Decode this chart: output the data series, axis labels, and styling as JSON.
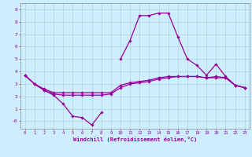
{
  "series": {
    "curve1_y": [
      3.7,
      3.0,
      2.5,
      2.1,
      1.4,
      0.4,
      0.3,
      -0.3,
      0.7,
      null,
      5.0,
      6.5,
      8.5,
      8.5,
      8.7,
      8.7,
      6.8,
      5.0,
      4.5,
      3.7,
      4.6,
      3.6,
      2.9,
      2.7
    ],
    "curve2_y": [
      3.7,
      3.0,
      2.6,
      2.3,
      2.3,
      2.3,
      2.3,
      2.3,
      2.3,
      2.3,
      2.9,
      3.1,
      3.2,
      3.3,
      3.5,
      3.6,
      3.6,
      3.6,
      3.6,
      3.5,
      3.5,
      3.5,
      2.9,
      2.7
    ],
    "curve3_y": [
      3.7,
      3.0,
      2.5,
      2.2,
      2.1,
      2.1,
      2.1,
      2.1,
      2.1,
      2.2,
      2.7,
      3.0,
      3.1,
      3.2,
      3.4,
      3.5,
      3.6,
      3.6,
      3.6,
      3.5,
      3.6,
      3.5,
      2.9,
      2.7
    ]
  },
  "bg_color": "#cceeff",
  "line_color": "#990099",
  "grid_color": "#aacccc",
  "xlabel": "Windchill (Refroidissement éolien,°C)",
  "xlim": [
    -0.5,
    23.5
  ],
  "ylim": [
    -0.6,
    9.5
  ],
  "yticks": [
    0,
    1,
    2,
    3,
    4,
    5,
    6,
    7,
    8,
    9
  ],
  "ytick_labels": [
    "-0",
    "1",
    "2",
    "3",
    "4",
    "5",
    "6",
    "7",
    "8",
    "9"
  ],
  "xticks": [
    0,
    1,
    2,
    3,
    4,
    5,
    6,
    7,
    8,
    9,
    10,
    11,
    12,
    13,
    14,
    15,
    16,
    17,
    18,
    19,
    20,
    21,
    22,
    23
  ]
}
